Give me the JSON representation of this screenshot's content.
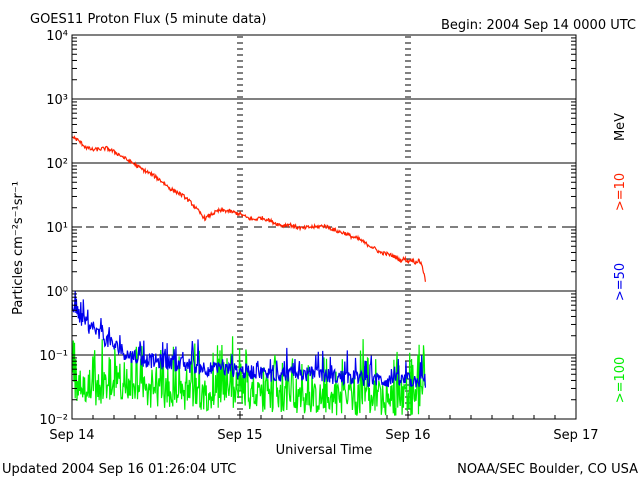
{
  "chart_data": {
    "type": "line",
    "title": "GOES11 Proton Flux (5 minute data)",
    "begin_label": "Begin: 2004 Sep 14 0000 UTC",
    "ylabel": "Particles cm⁻²s⁻¹sr⁻¹",
    "xlabel": "Universal Time",
    "yscale": "log",
    "ylim": [
      0.01,
      10000
    ],
    "xlim": [
      0,
      72
    ],
    "x_unit": "hours since 2004 Sep 14 00:00 UTC",
    "y_ticks": [
      {
        "value": 10000,
        "label": "10⁴"
      },
      {
        "value": 1000,
        "label": "10³"
      },
      {
        "value": 100,
        "label": "10²"
      },
      {
        "value": 10,
        "label": "10¹"
      },
      {
        "value": 1,
        "label": "10⁰"
      },
      {
        "value": 0.1,
        "label": "10⁻¹"
      },
      {
        "value": 0.01,
        "label": "10⁻²"
      }
    ],
    "x_ticks": [
      {
        "value": 0,
        "label": "Sep 14"
      },
      {
        "value": 24,
        "label": "Sep 15"
      },
      {
        "value": 48,
        "label": "Sep 16"
      },
      {
        "value": 72,
        "label": "Sep 17"
      }
    ],
    "gridlines": [
      {
        "value": 1000,
        "style": "solid"
      },
      {
        "value": 100,
        "style": "solid"
      },
      {
        "value": 10,
        "style": "dashed"
      },
      {
        "value": 1,
        "style": "solid"
      },
      {
        "value": 0.1,
        "style": "solid"
      }
    ],
    "day_markers_x": [
      24,
      48
    ],
    "series": [
      {
        "name": ">=10 MeV",
        "label": ">=10",
        "color": "#ff2200",
        "x": [
          0,
          1,
          2,
          3,
          4,
          5,
          6,
          7,
          8,
          9,
          10,
          11,
          12,
          13,
          14,
          15,
          16,
          17,
          18,
          19,
          20,
          21,
          22,
          23,
          24,
          25,
          26,
          27,
          28,
          29,
          30,
          31,
          32,
          33,
          34,
          35,
          36,
          37,
          38,
          39,
          40,
          41,
          42,
          43,
          44,
          45,
          46,
          46.5,
          47,
          47.5,
          48,
          48.5,
          49,
          49.5,
          50,
          50.5
        ],
        "y": [
          260,
          220,
          175,
          160,
          165,
          170,
          150,
          130,
          110,
          95,
          80,
          70,
          60,
          50,
          40,
          35,
          30,
          24,
          18,
          13.5,
          16,
          18,
          18,
          17,
          16,
          14,
          13,
          14,
          13,
          11.5,
          10.5,
          11,
          10,
          9.5,
          10,
          10,
          10.5,
          9.5,
          8.5,
          8,
          7,
          6.5,
          5.5,
          4.8,
          4,
          3.8,
          3.5,
          3.2,
          3,
          3.2,
          2.9,
          3.1,
          2.8,
          3,
          2.6,
          1.4
        ]
      },
      {
        "name": ">=50 MeV",
        "label": ">=50",
        "color": "#0000ee",
        "x": [
          0,
          1,
          2,
          3,
          4,
          5,
          6,
          7,
          8,
          9,
          10,
          12,
          14,
          16,
          18,
          20,
          22,
          24,
          26,
          28,
          30,
          32,
          34,
          36,
          38,
          40,
          42,
          44,
          46,
          48,
          50.5
        ],
        "y": [
          0.65,
          0.4,
          0.3,
          0.25,
          0.2,
          0.17,
          0.14,
          0.12,
          0.1,
          0.09,
          0.085,
          0.08,
          0.075,
          0.07,
          0.065,
          0.06,
          0.06,
          0.055,
          0.055,
          0.05,
          0.05,
          0.05,
          0.05,
          0.048,
          0.045,
          0.045,
          0.042,
          0.04,
          0.04,
          0.04,
          0.04
        ]
      },
      {
        "name": ">=100 MeV",
        "label": ">=100",
        "color": "#00ee00",
        "x": [
          0,
          2,
          4,
          6,
          8,
          10,
          12,
          14,
          16,
          18,
          20,
          22,
          24,
          26,
          28,
          30,
          32,
          34,
          36,
          38,
          40,
          42,
          44,
          46,
          48,
          50.5
        ],
        "y": [
          0.03,
          0.03,
          0.028,
          0.028,
          0.026,
          0.026,
          0.025,
          0.025,
          0.024,
          0.024,
          0.024,
          0.023,
          0.023,
          0.022,
          0.022,
          0.022,
          0.021,
          0.021,
          0.021,
          0.02,
          0.02,
          0.02,
          0.02,
          0.02,
          0.02,
          0.02
        ]
      }
    ],
    "unit_label": "MeV"
  },
  "footer": {
    "updated": "Updated 2004 Sep 16 01:26:04 UTC",
    "credit": "NOAA/SEC Boulder, CO USA"
  }
}
